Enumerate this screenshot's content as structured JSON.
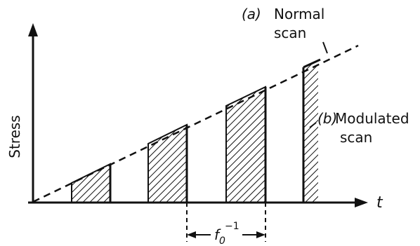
{
  "axes": {
    "y_label": "Stress",
    "x_label": "t"
  },
  "labels": {
    "a_marker": "(a)",
    "a_text_line1": "Normal",
    "a_text_line2": "scan",
    "b_marker": "(b)",
    "b_text_line1": "Modulated",
    "b_text_line2": "scan",
    "period_base": "f",
    "period_sub": "0",
    "period_sup": "−1"
  },
  "colors": {
    "ink": "#111111",
    "paper": "#ffffff"
  }
}
